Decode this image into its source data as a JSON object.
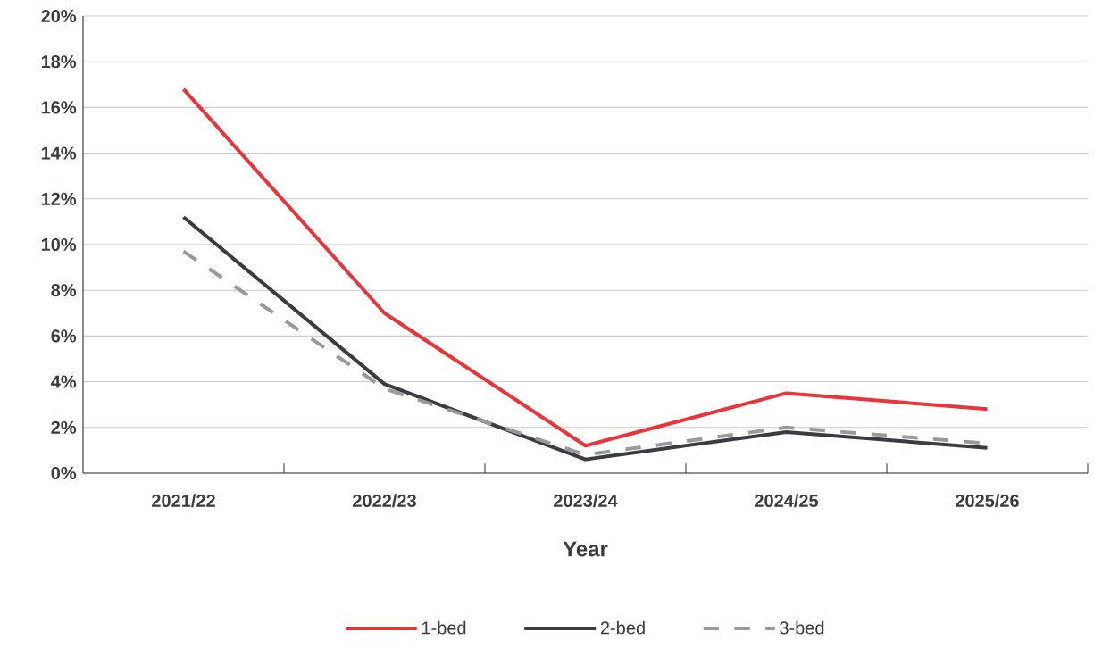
{
  "chart_data": {
    "type": "line",
    "xlabel": "Year",
    "categories": [
      "2021/22",
      "2022/23",
      "2023/24",
      "2024/25",
      "2025/26"
    ],
    "series": [
      {
        "name": "1-bed",
        "color": "#e8343a",
        "line_style": "solid",
        "values": [
          16.8,
          7.0,
          1.2,
          3.5,
          2.8
        ]
      },
      {
        "name": "2-bed",
        "color": "#3a3c40",
        "line_style": "solid",
        "values": [
          11.2,
          3.9,
          0.6,
          1.8,
          1.1
        ]
      },
      {
        "name": "3-bed",
        "color": "#98999b",
        "line_style": "dashed",
        "values": [
          9.7,
          3.7,
          0.8,
          2.0,
          1.3
        ]
      }
    ],
    "ylim": [
      0,
      20
    ],
    "yticks": [
      {
        "value": 0,
        "label": "0%"
      },
      {
        "value": 2,
        "label": "2%"
      },
      {
        "value": 4,
        "label": "4%"
      },
      {
        "value": 6,
        "label": "6%"
      },
      {
        "value": 8,
        "label": "8%"
      },
      {
        "value": 10,
        "label": "10%"
      },
      {
        "value": 12,
        "label": "12%"
      },
      {
        "value": 14,
        "label": "14%"
      },
      {
        "value": 16,
        "label": "16%"
      },
      {
        "value": 18,
        "label": "18%"
      },
      {
        "value": 20,
        "label": "20%"
      }
    ],
    "grid": "y",
    "legend": "bottom",
    "marker": "none"
  }
}
